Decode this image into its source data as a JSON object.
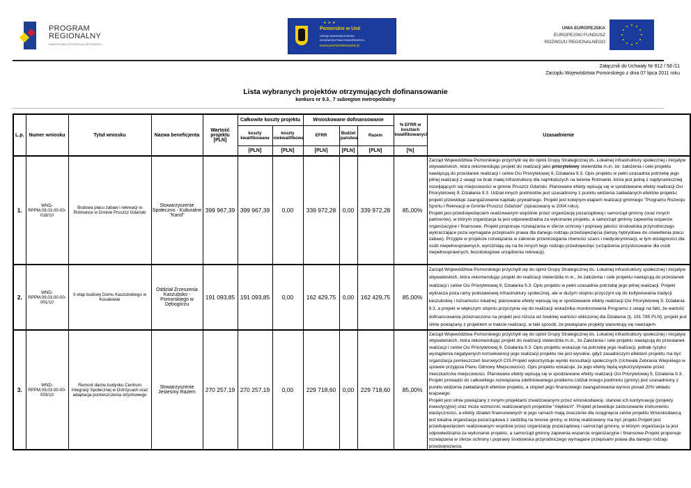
{
  "logos": {
    "program_regionalny": {
      "line1": "PROGRAM",
      "line2": "REGIONALNY",
      "tagline": "NARODOWA STRATEGIA SPÓJNOŚCI"
    },
    "pomorskie": {
      "title": "Pomorskie w Unii",
      "line1": "URZĄD MARSZAŁKOWSKI",
      "line2": "WOJEWÓDZTWA POMORSKIEGO",
      "url": "www.pomorskiewunii.pl"
    },
    "eu": {
      "line1": "UNIA EUROPEJSKA",
      "line2": "EUROPEJSKI FUNDUSZ",
      "line3": "ROZWOJU REGIONALNEGO"
    },
    "colors": {
      "eu_blue": "#1a3a9c",
      "yellow": "#f5d000",
      "red": "#d11f2b"
    }
  },
  "annex": {
    "line1": "Załącznik do Uchwały Nr 812 / 58 /11",
    "line2": "Zarządu Województwa Pomorskiego z dnia  07 lipca 2011 roku"
  },
  "title": "Lista wybranych projektów otrzymujących dofinansowanie",
  "subtitle": "konkurs nr 9.3._7 subregion metropolitalny",
  "table": {
    "headers": {
      "lp": "L.p.",
      "numer": "Numer wniosku",
      "tytul": "Tytuł wniosku",
      "beneficjent": "Nazwa beneficjenta",
      "wartosc": "Wartość projektu [PLN]",
      "calkowite": "Całkowite koszty projektu",
      "kwalifikowane": "koszty kwalifikowane",
      "niekwalifikowane": "koszty niekwalifikowane",
      "wnioskowane": "Wnioskowane dofinansowanie",
      "efrr": "EFRR",
      "budzet": "Budżet państwa",
      "razem": "Razem",
      "procent": "% EFRR w kosztach kwalifikowanych",
      "uzasadnienie": "Uzasadnienie",
      "unit_pln": "[PLN]",
      "unit_pct": "[%]"
    },
    "rows": [
      {
        "lp": "1.",
        "numer": "WND-RPPM.09.03.00-00-018/10",
        "tytul": "Budowa placu zabaw i rekreacji w Rotmance w Gminie Pruszcz Gdański",
        "beneficjent": "Stowarzyszenie Społeczno - Kulturalne \"Karol\"",
        "wartosc": "399 967,39",
        "kwalifikowane": "399 967,39",
        "niekwalifikowane": "0,00",
        "efrr": "339 972,28",
        "budzet": "0,00",
        "razem": "339 972,28",
        "procent": "85,00%",
        "uzasadnienie": {
          "p1_before": "Zarząd Województwa Pomorskiego przychylił się do opinii Grupy Strategicznej ds. Lokalnej infrastruktury społecznej i inicjatyw obywatelskich, która rekomendując projekt do realizacji jako ",
          "p1_bold": "priorytetowy",
          "p1_after": " stwierdziła m.in. że: założenia i cele projektu nawiązują do przesłanek realizacji i celów Osi Priorytetowej 9, Działania 9.3. Opis projektu w pełni uzasadnia potrzebę jego pilnej realizacji z uwagi na brak małej infrastruktury dla najmłodszych na terenie Rotmanki, która jest jedną z najdynamiczniej rozwijających się miejscowości w gminie Pruszcz Gdański. Planowane efekty wpisują się w spodziewane efekty realizacji Osi Priorytetowej 9; Działania 9.3. Udział innych podmiotów jest uzasadniony z punktu widzenia zakładanych efektów projektu; projekt przewiduje zaangażowanie kapitału prywatnego. Projekt jest kolejnym etapem realizacji gminnego \"Programu Rozwoju Sportu i Rekreacji w Gminie Pruszcz Gdański\" (opracowany w 2004 roku).",
          "p2": "Projekt jest przedsięwzięciem realizowanym wspólnie przez organizację pozarządową i samorząd gminny (oraz innych partnerów), w którym organizacja ta jest odpowiedzialna za wykonanie projektu, a samorząd gminny zapewnia wsparcie organizacyjne i finansowe. Projekt proponuje rozwiązania w sferze ochrony i poprawy jakości środowiska przyrodniczego wykraczające poza wymagane przepisami prawa dla danego rodzaju przedsięwzięcia (lampy hybrydowe do oświetlenia placu zabaw). Przyjęte w projekcie rozwiązania w zakresie przestrzegania równości szans i niedyskryminacji, w tym dostępności dla osób niepełnosprawnych, wyróżniają się na tle innych tego rodzaju przedsięwzięć (urządzenia przystosowane dla osób niepełnosprawnych, bezobsługowe urządzenia rekreacji)."
        }
      },
      {
        "lp": "2.",
        "numer": "WND-RPPM.09.03.00-00-001/10",
        "tytul": "II etap budowy Domu Kaszubskiego w Kosakowie",
        "beneficjent": "Oddział Zrzeszenia Kaszubsko - Pomorskiego w Dębogórzu",
        "wartosc": "191 093,85",
        "kwalifikowane": "191 093,85",
        "niekwalifikowane": "0,00",
        "efrr": "162 429,75",
        "budzet": "0,00",
        "razem": "162 429,75",
        "procent": "85,00%",
        "uzasadnienie": {
          "p1": "Zarząd Województwa Pomorskiego przychylił się do opinii Grupy Strategicznej ds. Lokalnej infrastruktury społecznej i inicjatyw obywatelskich, która rekomendując projekt do realizacji stwierdziła m.in., że założenia i cele projektu nawiązują do przesłanek realizacji i celów Osi Priorytetowej 9, Działania 9.3. Opis projektu w pełni uzasadnia potrzebę jego pilnej realizacji. Projekt wykracza poza ramy podstawowej infrastruktury społecznej, ale w dużym stopniu przyczyni się do kultywowania tradycji kaszubskiej i tożsamości lokalnej; planowane efekty wpisują się w spodziewane efekty realizacji Osi Priorytetowej 9, Działania 9.3, a projekt w większym stopniu przyczynia się do realizacji wskaźnika monitorowania Programu z uwagi na fakt, że wartość dofinansowania przeznaczona na projekt jest niższa od średniej wartości obliczonej dla Działania  (tj. 191 785 PLN); projekt jest silnie powiązany z projektem w trakcie realizacji, w taki sposób, że powiązane projekty warunkują się nawzajem"
        }
      },
      {
        "lp": "3.",
        "numer": "WND-RPPM.09.03.00-00-003/10",
        "tytul": "Remont dachu budynku Centrum Integracji Społecznej w Ostrzycach oraz adaptacja pomieszczenia strychowego",
        "beneficjent": "Stowarzyszenie Jesteśmy Razem",
        "wartosc": "270 257,19",
        "kwalifikowane": "270 257,19",
        "niekwalifikowane": "0,00",
        "efrr": "229 718,60",
        "budzet": "0,00",
        "razem": "229 718,60",
        "procent": "85,00%",
        "uzasadnienie": {
          "p1": "Zarząd Województwa Pomorskiego przychylił się do opinii Grupy Strategicznej ds. Lokalnej infrastruktury społecznej i inicjatyw obywatelskich, która rekomendując projekt do realizacji stwierdziła m.in., że Założenia i cele projektu nawiązują do przesłanek realizacji i celów Osi Priorytetowej 9, Działania 9.3. Opis projektu wskazuje na potrzebę jego realizacji, jednak ryzyko wystąpienia negatywnych konsekwencji jego realizacji projektu nie jest wysokie, gdyż zasadniczym efektem projektu ma być organizacja pomieszczeń biurowych CIS.Projekt wykorzystuje wyniki konsultacji społecznych (Uchwała Zebrania Wiejskiego w sprawie przyjęcia Planu Odnowy Miejscowości). Opis projektu wskazuje, że jego efekty będą wykorzystywane przez mieszkańców miejscowości. Planowane efekty wpisują się w spodziewane efekty realizacji Osi Priorytetowej 9, Działania 9.3. Projekt prowadzi do całkowitego rozwiązania zdefiniowanego problemu.Udział innego podmiotu (gminy)  jest uzasadniony z punktu widzenia zakładanych efektów projektu, a stopień jego finansowego zaangażowania wynosi ponad 20% wkładu krajowego.",
          "p2": "Projekt jest silnie powiązany z innymi projektami zrealizowanymi przez wnioskodawcę, stanowi ich kontynuację (projekty inwestycyjne) oraz może wzmocnić realizowanych projektów \"miękkich\". Projekt przewiduje zastosowanie instrumentu elastyczności, a efekty działań finansowanych w jego ramach mają znaczenie dla osiągnięcia celów projektu.Wnioskodawcą jest lokalna organizacja pozarządowa z siedzibą na terenie gminy, w której realizowany ma być projekt.Projekt jest przedsięwzięciem realizowanym wspólnie przez organizację pozarządową i samorząd gminny, w którym organizacja ta jest odpowiedzialna za wykonanie projektu, a samorząd gminny zapewnia wsparcie organizacyjne i finansowe.Projekt proponuje rozwiązania w sferze ochrony i poprawy środowiska przyrodniczego wymagane przepisami prawa dla danego rodzaju przedsięwzięcia."
        }
      }
    ]
  }
}
